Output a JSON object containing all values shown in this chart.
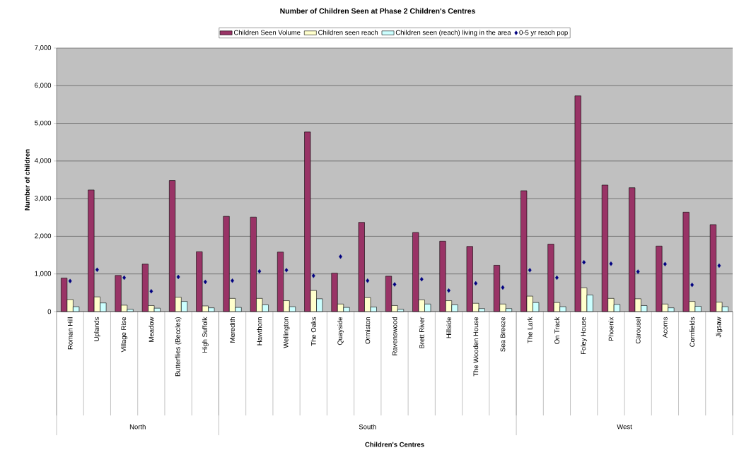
{
  "chart_data": {
    "type": "bar",
    "title": "Number of Children Seen at Phase 2 Children's Centres",
    "ylabel": "Number of children",
    "categories": [
      "Roman Hill",
      "Uplands",
      "Village Rise",
      "Meadow",
      "Butterflies (Beccles)",
      "High Suffolk",
      "Meredith",
      "Hawthorn",
      "Wellington",
      "The Oaks",
      "Quayside",
      "Ormiston",
      "Ravenswood",
      "Brett River",
      "Hillside",
      "The Wooden House",
      "Sea Breeze",
      "The Lark",
      "On Track",
      "Foley House",
      "Phoenix",
      "Carousel",
      "Acorns",
      "Cornfields",
      "Jigsaw"
    ],
    "series": [
      {
        "name": "Children Seen Volume",
        "color": "#993366",
        "values": [
          890,
          3230,
          960,
          1260,
          3480,
          1590,
          2530,
          2510,
          1580,
          4770,
          1020,
          2370,
          940,
          2100,
          1870,
          1730,
          1230,
          3210,
          1790,
          5730,
          3360,
          3290,
          1740,
          2640,
          2310
        ]
      },
      {
        "name": "Children seen reach",
        "color": "#ffffcc",
        "values": [
          320,
          390,
          170,
          160,
          380,
          150,
          350,
          350,
          290,
          560,
          200,
          370,
          160,
          310,
          290,
          220,
          200,
          410,
          240,
          630,
          350,
          340,
          200,
          270,
          250
        ]
      },
      {
        "name": "Children seen (reach) living in the area",
        "color": "#ccffff",
        "values": [
          130,
          230,
          60,
          90,
          270,
          100,
          110,
          180,
          130,
          340,
          110,
          120,
          60,
          200,
          180,
          80,
          80,
          240,
          130,
          440,
          190,
          160,
          100,
          140,
          130
        ]
      },
      {
        "name": "0-5 yr reach pop",
        "color": "#000080",
        "type": "scatter",
        "marker": "diamond",
        "values": [
          810,
          1110,
          900,
          540,
          920,
          790,
          820,
          1070,
          1100,
          950,
          1460,
          820,
          720,
          860,
          560,
          750,
          640,
          1100,
          900,
          1310,
          1270,
          1060,
          1260,
          710,
          1220
        ]
      }
    ],
    "ylim": [
      0,
      7000
    ],
    "yticks": [
      0,
      {
        "value": 1000,
        "label": "1,000"
      },
      {
        "value": 2000,
        "label": "2,000"
      },
      {
        "value": 3000,
        "label": "3,000"
      },
      {
        "value": 4000,
        "label": "4,000"
      },
      {
        "value": 5000,
        "label": "5,000"
      },
      {
        "value": 6000,
        "label": "6,000"
      },
      {
        "value": 7000,
        "label": "7,000"
      }
    ],
    "grid": "y",
    "legend": "top",
    "annotations": [
      "North",
      "South",
      "West",
      "Children's Centres"
    ]
  }
}
